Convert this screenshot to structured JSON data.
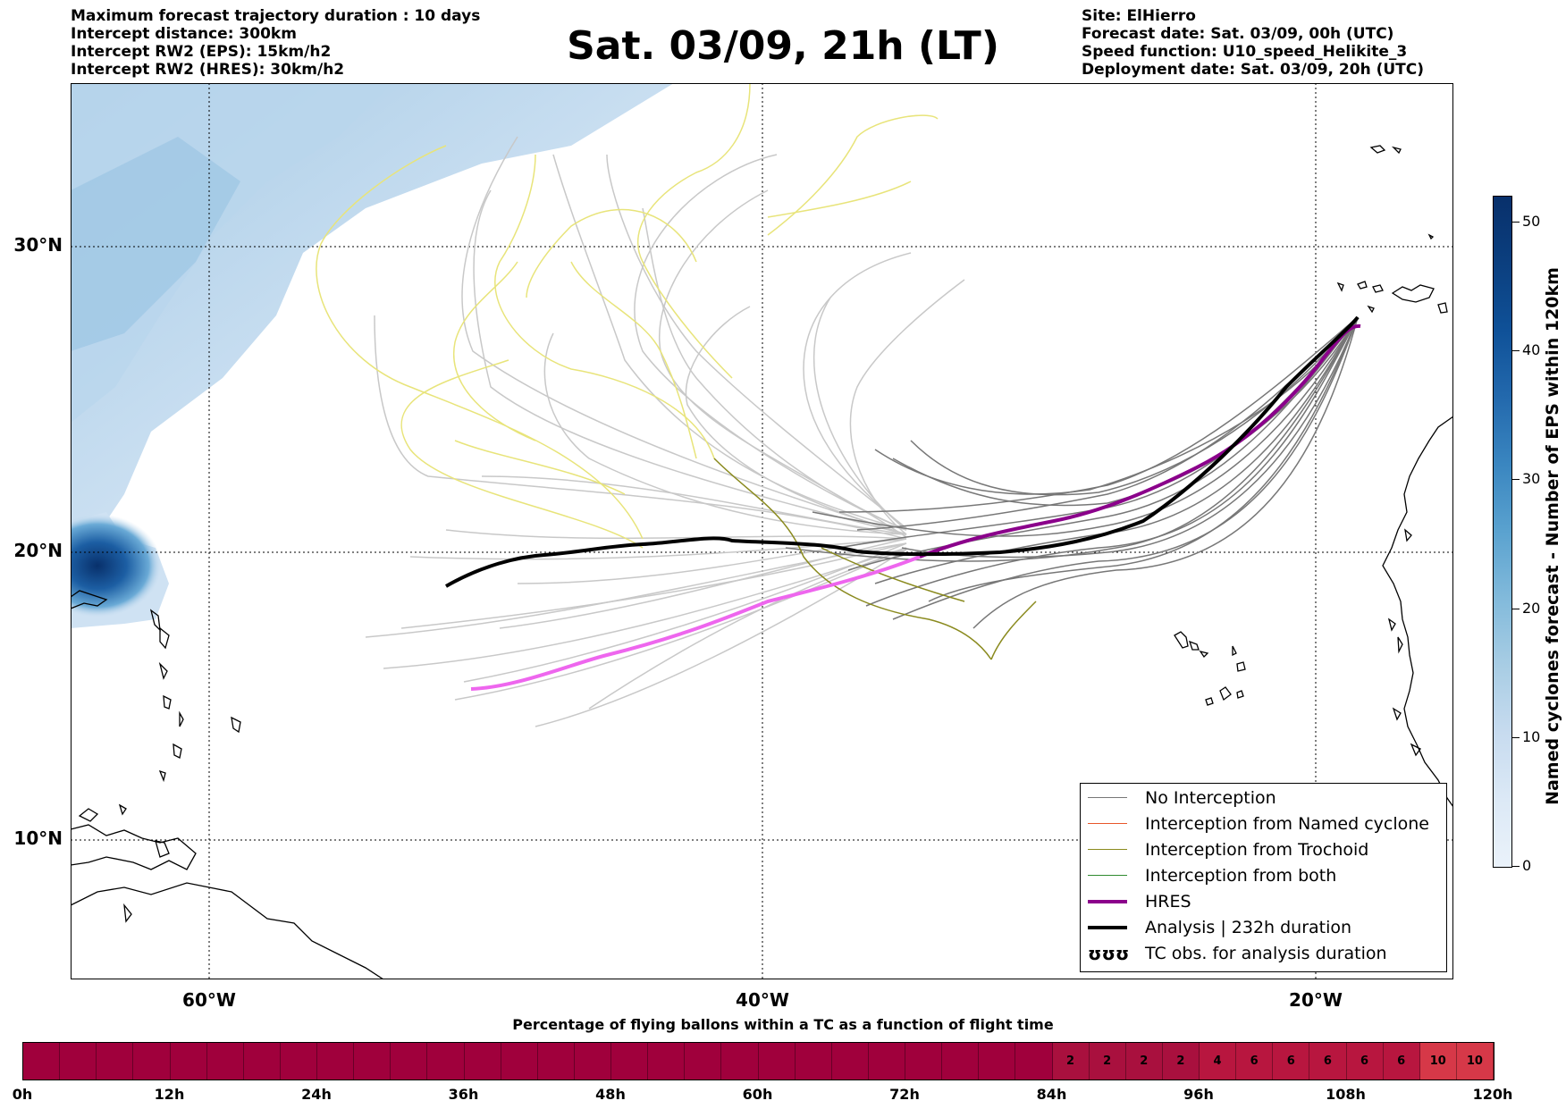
{
  "header_left": [
    "Maximum forecast trajectory duration : 10 days",
    "Intercept distance: 300km",
    "Intercept RW2 (EPS):  15km/h2",
    "Intercept RW2 (HRES): 30km/h2"
  ],
  "title": "Sat. 03/09, 21h (LT)",
  "header_right": [
    "Site: ElHierro",
    "Forecast date: Sat. 03/09, 00h (UTC)",
    "Speed function: U10_speed_Helikite_3",
    "Deployment date: Sat. 03/09, 20h (UTC)"
  ],
  "lat_labels": [
    "30°N",
    "20°N",
    "10°N"
  ],
  "lon_labels": [
    "60°W",
    "40°W",
    "20°W"
  ],
  "legend": [
    {
      "label": "No Interception",
      "color": "#777777"
    },
    {
      "label": "Interception from Named cyclone",
      "color": "#e8562a"
    },
    {
      "label": "Interception from Trochoid",
      "color": "#8a8a1e"
    },
    {
      "label": "Interception from both",
      "color": "#2e8b2e"
    },
    {
      "label": "HRES",
      "color": "#8b008b"
    },
    {
      "label": "Analysis | 232h duration",
      "color": "#000000"
    },
    {
      "label": "TC obs. for analysis duration",
      "symbol": "ʊʊʊ"
    }
  ],
  "colorbar": {
    "label": "Named cyclones forecast - Number of EPS within 120km",
    "ticks": [
      "0",
      "10",
      "20",
      "30",
      "40",
      "50"
    ],
    "min": 0,
    "max": 52
  },
  "timeline": {
    "title": "Percentage of flying ballons within a TC as a function of flight time",
    "tick_labels": [
      "0h",
      "12h",
      "24h",
      "36h",
      "48h",
      "60h",
      "72h",
      "84h",
      "96h",
      "108h",
      "120h"
    ],
    "values": [
      0,
      0,
      0,
      0,
      0,
      0,
      0,
      0,
      0,
      0,
      0,
      0,
      0,
      0,
      0,
      0,
      0,
      0,
      0,
      0,
      0,
      0,
      0,
      0,
      0,
      0,
      0,
      0,
      2,
      2,
      2,
      2,
      4,
      6,
      6,
      6,
      6,
      6,
      10,
      10
    ]
  },
  "colors": {
    "hres": "#8b008b",
    "hres_light": "#ee66ee",
    "analysis": "#000000",
    "eps": "#777777",
    "eps_light": "#c8c8c8",
    "trochoid": "#8a8a1e",
    "yellow": "#e8e47a",
    "bar_base": "#a0003c",
    "bar_mid": "#b8163f",
    "bar_high": "#d63848"
  }
}
